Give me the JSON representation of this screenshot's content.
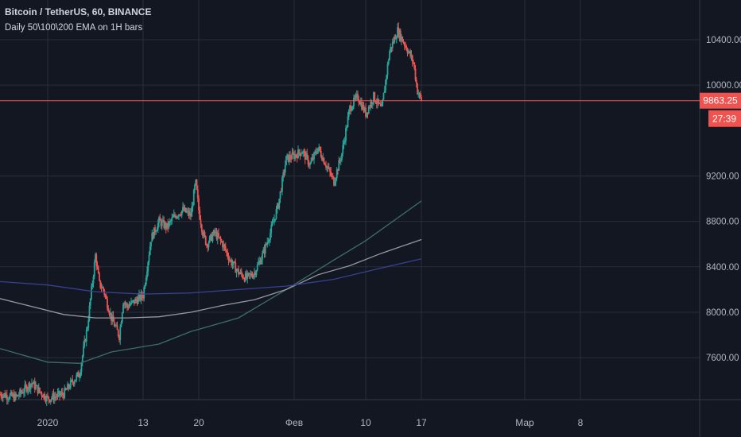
{
  "chart_data": {
    "type": "candlestick",
    "title": "Bitcoin / TetherUS, 60, BINANCE",
    "subtitle": "Daily 50\\100\\200 EMA on 1H bars",
    "y_ticks": [
      "7600.00",
      "8000.00",
      "8400.00",
      "8800.00",
      "9200.00",
      "10000.00",
      "10400.00"
    ],
    "ylim": [
      7230,
      10750
    ],
    "x_ticks": [
      {
        "label": "2020",
        "day": 0
      },
      {
        "label": "13",
        "day": 12
      },
      {
        "label": "20",
        "day": 19
      },
      {
        "label": "Фев",
        "day": 31
      },
      {
        "label": "10",
        "day": 40
      },
      {
        "label": "17",
        "day": 47
      },
      {
        "label": "Мар",
        "day": 60
      },
      {
        "label": "8",
        "day": 67
      }
    ],
    "xlim_days": [
      -6,
      82
    ],
    "last_price": {
      "label": "9863.25",
      "value": 9863.25
    },
    "countdown": "27:39",
    "price_path": [
      [
        -6,
        7280
      ],
      [
        -4,
        7250
      ],
      [
        -2,
        7380
      ],
      [
        -1,
        7300
      ],
      [
        0,
        7240
      ],
      [
        2,
        7280
      ],
      [
        3,
        7380
      ],
      [
        4,
        7460
      ],
      [
        5,
        7880
      ],
      [
        6,
        8500
      ],
      [
        6.5,
        8250
      ],
      [
        7,
        8200
      ],
      [
        8,
        7950
      ],
      [
        9,
        7790
      ],
      [
        9.5,
        8100
      ],
      [
        10,
        8050
      ],
      [
        11,
        8100
      ],
      [
        12,
        8150
      ],
      [
        13,
        8650
      ],
      [
        14,
        8800
      ],
      [
        15,
        8750
      ],
      [
        16,
        8850
      ],
      [
        17,
        8900
      ],
      [
        18,
        8850
      ],
      [
        18.6,
        9150
      ],
      [
        19,
        8900
      ],
      [
        19.5,
        8700
      ],
      [
        20,
        8600
      ],
      [
        21,
        8700
      ],
      [
        22,
        8600
      ],
      [
        23,
        8450
      ],
      [
        24,
        8350
      ],
      [
        25,
        8300
      ],
      [
        26,
        8350
      ],
      [
        27,
        8500
      ],
      [
        28,
        8700
      ],
      [
        29,
        8950
      ],
      [
        30,
        9350
      ],
      [
        31,
        9380
      ],
      [
        32,
        9420
      ],
      [
        33,
        9300
      ],
      [
        34,
        9450
      ],
      [
        35,
        9300
      ],
      [
        36,
        9150
      ],
      [
        37,
        9400
      ],
      [
        38,
        9800
      ],
      [
        39,
        9900
      ],
      [
        40,
        9750
      ],
      [
        41,
        9900
      ],
      [
        42,
        9780
      ],
      [
        43,
        10300
      ],
      [
        44,
        10480
      ],
      [
        45,
        10350
      ],
      [
        46,
        10200
      ],
      [
        46.5,
        9950
      ],
      [
        47,
        9863
      ]
    ],
    "series": [
      {
        "name": "EMA 50",
        "color": "#3c6f65",
        "points": [
          [
            -6,
            7680
          ],
          [
            0,
            7560
          ],
          [
            4,
            7550
          ],
          [
            8,
            7650
          ],
          [
            14,
            7720
          ],
          [
            18,
            7830
          ],
          [
            24,
            7950
          ],
          [
            30,
            8200
          ],
          [
            36,
            8460
          ],
          [
            40,
            8630
          ],
          [
            44,
            8830
          ],
          [
            47,
            8980
          ]
        ]
      },
      {
        "name": "EMA 100",
        "color": "#9598a1",
        "points": [
          [
            -6,
            8120
          ],
          [
            -2,
            8050
          ],
          [
            2,
            7980
          ],
          [
            6,
            7950
          ],
          [
            10,
            7950
          ],
          [
            14,
            7960
          ],
          [
            18,
            8000
          ],
          [
            22,
            8060
          ],
          [
            26,
            8110
          ],
          [
            30,
            8200
          ],
          [
            34,
            8330
          ],
          [
            38,
            8410
          ],
          [
            42,
            8520
          ],
          [
            47,
            8640
          ]
        ]
      },
      {
        "name": "EMA 200",
        "color": "#3a3f8f",
        "points": [
          [
            -6,
            8270
          ],
          [
            0,
            8240
          ],
          [
            6,
            8180
          ],
          [
            12,
            8160
          ],
          [
            18,
            8170
          ],
          [
            24,
            8200
          ],
          [
            30,
            8230
          ],
          [
            36,
            8290
          ],
          [
            42,
            8390
          ],
          [
            47,
            8470
          ]
        ]
      }
    ],
    "grid": true
  }
}
